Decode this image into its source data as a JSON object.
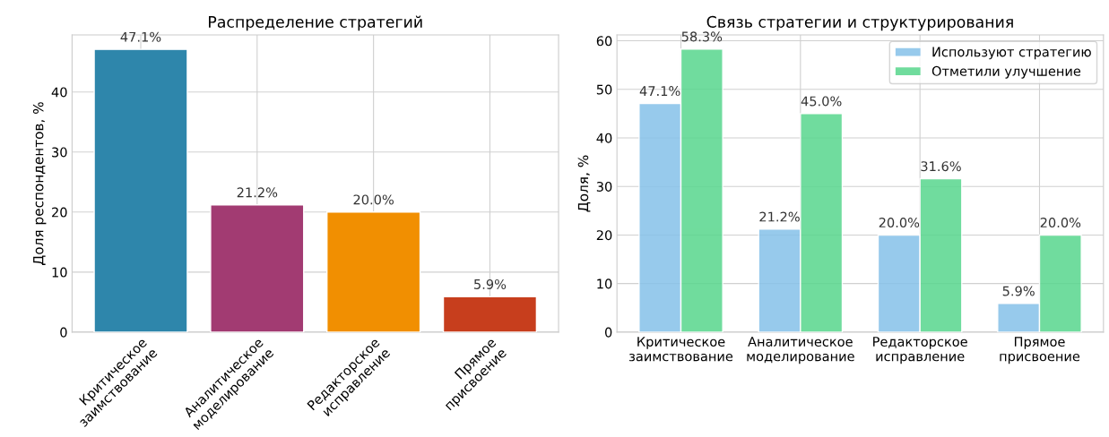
{
  "chart_data": [
    {
      "type": "bar",
      "title": "Распределение стратегий",
      "ylabel": "Доля респондентов, %",
      "categories": [
        "Критическое\nзаимствование",
        "Аналитическое\nмоделирование",
        "Редакторское\nисправление",
        "Прямое\nприсвоение"
      ],
      "values": [
        47.1,
        21.2,
        20.0,
        5.9
      ],
      "colors": [
        "#2e86ab",
        "#a23b72",
        "#f18f01",
        "#c73e1d"
      ],
      "value_labels": [
        "47.1%",
        "21.2%",
        "20.0%",
        "5.9%"
      ],
      "ylim": [
        0,
        49.5
      ],
      "yticks": [
        0,
        10,
        20,
        30,
        40
      ],
      "grid": true
    },
    {
      "type": "bar",
      "title": "Связь стратегии и структурирования",
      "ylabel": "Доля, %",
      "categories": [
        "Критическое\nзаимствование",
        "Аналитическое\nмоделирование",
        "Редакторское\nисправление",
        "Прямое\nприсвоение"
      ],
      "series": [
        {
          "name": "Используют стратегию",
          "color": "#85c1e9",
          "values": [
            47.1,
            21.2,
            20.0,
            5.9
          ],
          "value_labels": [
            "47.1%",
            "21.2%",
            "20.0%",
            "5.9%"
          ]
        },
        {
          "name": "Отметили улучшение",
          "color": "#58d68d",
          "values": [
            58.3,
            45.0,
            31.6,
            20.0
          ],
          "value_labels": [
            "58.3%",
            "45.0%",
            "31.6%",
            "20.0%"
          ]
        }
      ],
      "ylim": [
        0,
        61.2
      ],
      "yticks": [
        0,
        10,
        20,
        30,
        40,
        50,
        60
      ],
      "grid": true,
      "legend": "top right"
    }
  ]
}
